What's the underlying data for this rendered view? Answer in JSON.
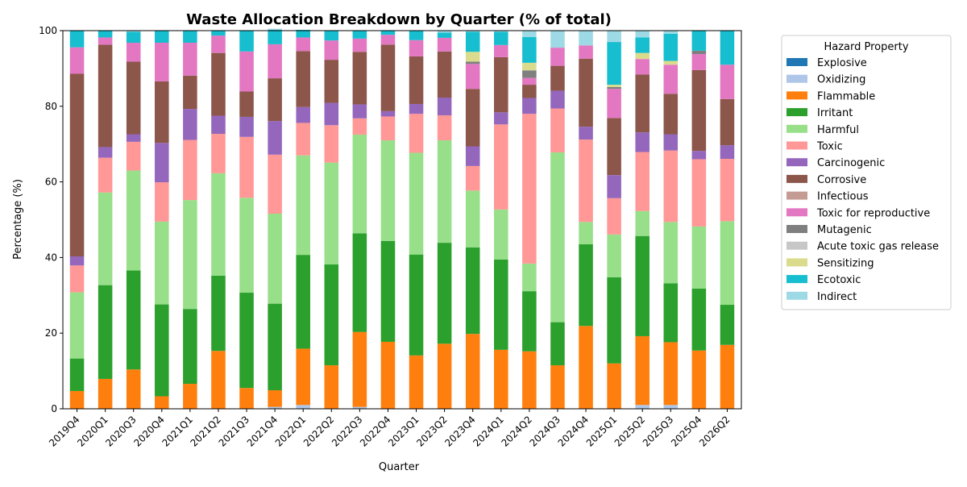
{
  "chart_data": {
    "type": "bar",
    "stacked": true,
    "title": "Waste Allocation Breakdown by Quarter (% of total)",
    "xlabel": "Quarter",
    "ylabel": "Percentage (%)",
    "ylim": [
      0,
      100
    ],
    "yticks": [
      0,
      20,
      40,
      60,
      80,
      100
    ],
    "grid": false,
    "legend": {
      "title": "Hazard Property",
      "placement": "outside-right"
    },
    "categories": [
      "2019Q4",
      "2020Q1",
      "2020Q3",
      "2020Q4",
      "2021Q1",
      "2021Q2",
      "2021Q3",
      "2021Q4",
      "2022Q1",
      "2022Q2",
      "2022Q3",
      "2022Q4",
      "2023Q1",
      "2023Q2",
      "2023Q4",
      "2024Q1",
      "2024Q2",
      "2024Q3",
      "2024Q4",
      "2025Q1",
      "2025Q2",
      "2025Q3",
      "2025Q4",
      "2026Q2"
    ],
    "series": [
      {
        "name": "Explosive",
        "color": "#1f77b4",
        "values": [
          0,
          0,
          0,
          0,
          0,
          0,
          0,
          0,
          0,
          0,
          0,
          0,
          0,
          0,
          0,
          0,
          0,
          0,
          0,
          0,
          0,
          0,
          0,
          0
        ]
      },
      {
        "name": "Oxidizing",
        "color": "#aec7e8",
        "values": [
          0,
          0,
          0,
          0,
          0,
          0,
          0,
          0.5,
          1,
          0,
          0.5,
          0,
          0,
          0,
          0,
          0,
          0,
          0,
          0,
          0,
          1,
          1,
          0,
          0
        ]
      },
      {
        "name": "Flammable",
        "color": "#ff7f0e",
        "values": [
          4.7,
          7.9,
          10.4,
          3.3,
          6.6,
          15.3,
          5.5,
          4.4,
          14.9,
          11.5,
          19.8,
          17.7,
          14.1,
          17.2,
          19.8,
          15.6,
          15.2,
          11.5,
          21.9,
          12,
          18.2,
          16.6,
          15.4,
          16.9
        ]
      },
      {
        "name": "Irritant",
        "color": "#2ca02c",
        "values": [
          8.6,
          24.8,
          26.2,
          24.3,
          19.8,
          19.9,
          25.2,
          22.9,
          24.8,
          26.7,
          26.1,
          26.7,
          26.7,
          26.7,
          22.9,
          23.9,
          15.9,
          11.4,
          21.6,
          22.8,
          26.5,
          15.6,
          16.4,
          10.6
        ]
      },
      {
        "name": "Harmful",
        "color": "#98df8a",
        "values": [
          17.5,
          24.5,
          26.4,
          21.9,
          28.8,
          27.1,
          25.1,
          23.8,
          26.3,
          26.9,
          26.1,
          26.6,
          26.9,
          27.1,
          15,
          13.2,
          7.3,
          44.9,
          5.9,
          11.3,
          6.6,
          16.2,
          16.4,
          22.1
        ]
      },
      {
        "name": "Toxic",
        "color": "#ff9896",
        "values": [
          7.1,
          9.2,
          7.6,
          10.4,
          15.9,
          10.4,
          16.1,
          15.6,
          8.6,
          9.9,
          4.3,
          6.3,
          10.3,
          6.6,
          6.5,
          22.5,
          39.6,
          11.6,
          21.8,
          9.6,
          15.6,
          18.9,
          17.8,
          16.5
        ]
      },
      {
        "name": "Carcinogenic",
        "color": "#9467bd",
        "values": [
          2.4,
          2.8,
          2,
          10.4,
          8.2,
          4.8,
          5.3,
          8.9,
          4.2,
          5.9,
          3.7,
          1.4,
          2.6,
          4.7,
          5.2,
          3.2,
          4.2,
          4.7,
          3.4,
          6.1,
          5.2,
          4.3,
          2.2,
          3.6
        ]
      },
      {
        "name": "Corrosive",
        "color": "#8c564b",
        "values": [
          48.3,
          27.1,
          19.2,
          16.3,
          8.8,
          16.6,
          6.7,
          11.3,
          14.8,
          11.4,
          13.9,
          17.6,
          12.6,
          12.2,
          15.2,
          14.6,
          3.5,
          6.6,
          18,
          15.1,
          15.3,
          10.7,
          21.4,
          12.2
        ]
      },
      {
        "name": "Infectious",
        "color": "#c49c94",
        "values": [
          0,
          0,
          0,
          0,
          0,
          0,
          0,
          0,
          0,
          0,
          0,
          0,
          0,
          0,
          0,
          0,
          0,
          0,
          0,
          0,
          0,
          0,
          0,
          0
        ]
      },
      {
        "name": "Toxic for reproductive",
        "color": "#e377c2",
        "values": [
          7,
          1.9,
          5,
          10.2,
          8.7,
          4.6,
          10.6,
          9,
          3.6,
          5.1,
          3.5,
          2.6,
          4.3,
          3.6,
          6.6,
          3.2,
          1.8,
          4.8,
          3.5,
          7.7,
          4.1,
          7.7,
          4.2,
          9.1
        ]
      },
      {
        "name": "Mutagenic",
        "color": "#7f7f7f",
        "values": [
          0,
          0,
          0,
          0,
          0,
          0,
          0,
          0,
          0,
          0,
          0,
          0,
          0,
          0,
          0.6,
          0,
          2,
          0,
          0,
          0.5,
          0,
          0,
          0.9,
          0
        ]
      },
      {
        "name": "Acute toxic gas release",
        "color": "#c7c7c7",
        "values": [
          0,
          0,
          0,
          0,
          0,
          0,
          0,
          0,
          0,
          0,
          0,
          0,
          0,
          0,
          0,
          0,
          0,
          0,
          0,
          0,
          0,
          0,
          0,
          0
        ]
      },
      {
        "name": "Sensitizing",
        "color": "#dbdb8d",
        "values": [
          0,
          0,
          0,
          0,
          0,
          0,
          0,
          0,
          0,
          0,
          0,
          0,
          0,
          0,
          2.6,
          0,
          2,
          0,
          0,
          0.6,
          1.6,
          1,
          0,
          0
        ]
      },
      {
        "name": "Ecotoxic",
        "color": "#17becf",
        "values": [
          4.4,
          1.8,
          2.9,
          3.2,
          3.2,
          1.3,
          5.5,
          3.8,
          2,
          2.6,
          2,
          1.1,
          2.4,
          1.4,
          5.3,
          3.5,
          6.8,
          0,
          0,
          11.3,
          4.1,
          7.2,
          5.3,
          9
        ]
      },
      {
        "name": "Indirect",
        "color": "#9edae5",
        "values": [
          0,
          0,
          0.3,
          0,
          0,
          0,
          0,
          0.3,
          0,
          0,
          0,
          0,
          0.1,
          0.5,
          0.3,
          0.3,
          1.7,
          4.5,
          3.9,
          3,
          1.8,
          0.8,
          0,
          0
        ]
      }
    ]
  }
}
